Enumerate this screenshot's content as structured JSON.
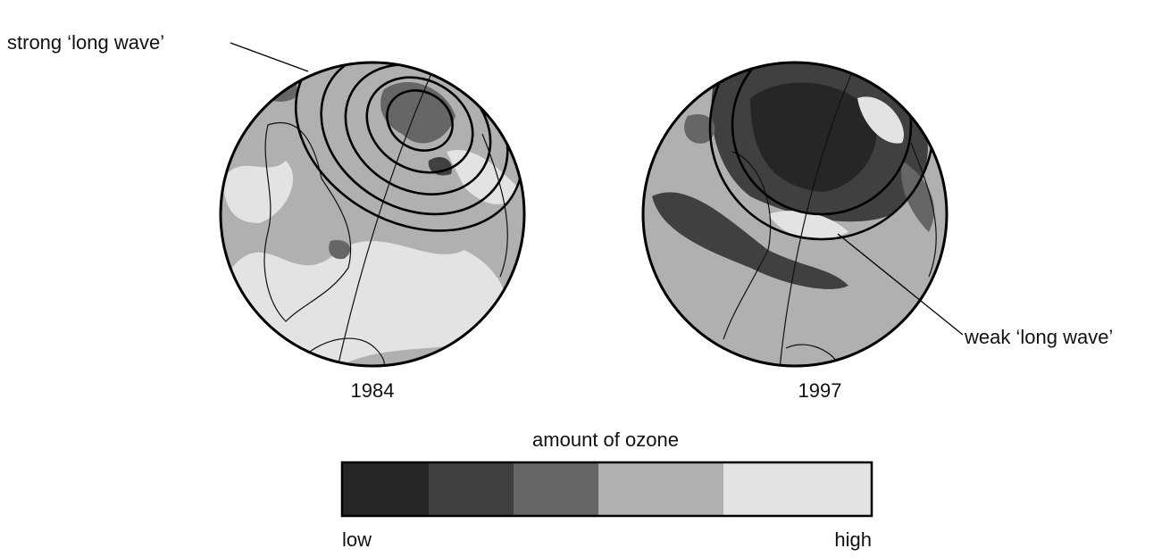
{
  "maps": [
    {
      "year": "1984",
      "annotation": "strong ‘long wave’"
    },
    {
      "year": "1997",
      "annotation": "weak ‘long wave’"
    }
  ],
  "legend": {
    "title": "amount of ozone",
    "low": "low",
    "high": "high"
  }
}
